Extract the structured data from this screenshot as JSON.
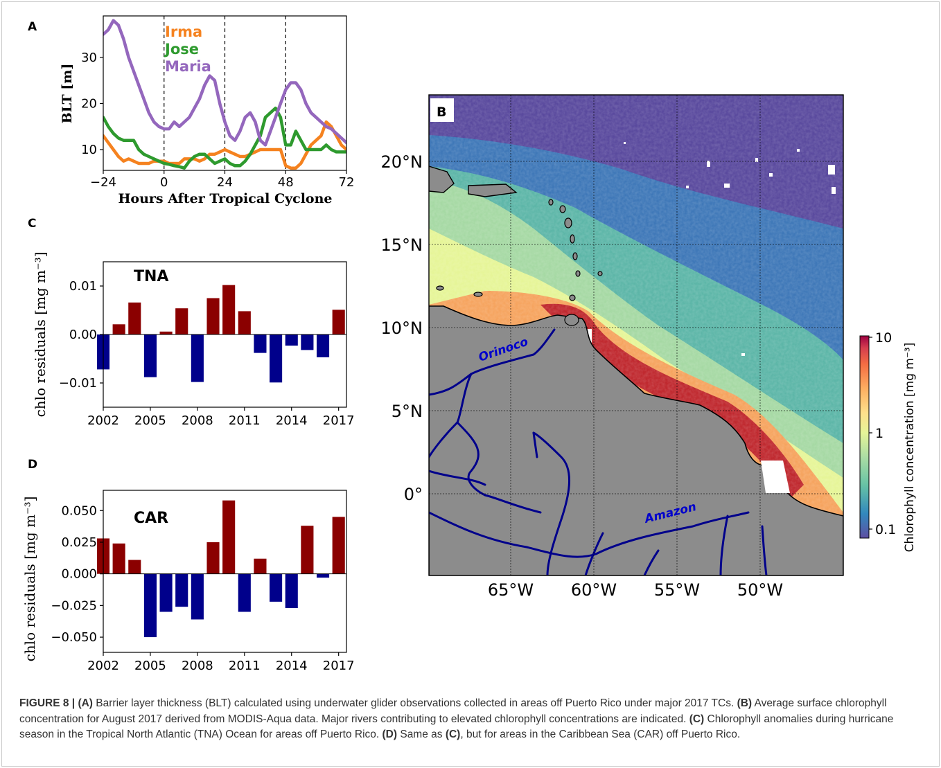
{
  "panel_labels": {
    "a": "A",
    "b": "B",
    "c": "C",
    "d": "D"
  },
  "colors": {
    "irma": "#f5821f",
    "jose": "#2e9a2e",
    "maria": "#9467bd",
    "positive": "#8b0000",
    "negative": "#00008b",
    "land": "#8c8c8c",
    "river": "#00008b"
  },
  "map": {
    "lon_labels": [
      "65°W",
      "60°W",
      "55°W",
      "50°W"
    ],
    "lat_labels": [
      "20°N",
      "15°N",
      "10°N",
      "5°N",
      "0°"
    ],
    "rivers": {
      "orinoco": "Orinoco",
      "amazon": "Amazon"
    },
    "colorbar": {
      "label": "Chlorophyll concentration [mg m⁻³]",
      "ticks": [
        "10",
        "1",
        "0.1"
      ],
      "scale": "log",
      "range": [
        0.05,
        10
      ]
    }
  },
  "caption": {
    "prefix": "FIGURE 8 |",
    "a_tag": "(A)",
    "a_text": " Barrier layer thickness (BLT) calculated using underwater glider observations collected in areas off Puerto Rico under major 2017 TCs. ",
    "b_tag": "(B)",
    "b_text": " Average surface chlorophyll concentration for August 2017 derived from MODIS-Aqua data. Major rivers contributing to elevated chlorophyll concentrations are indicated. ",
    "c_tag": "(C)",
    "c_text": " Chlorophyll anomalies during hurricane season in the Tropical North Atlantic (TNA) Ocean for areas off Puerto Rico. ",
    "d_tag": "(D)",
    "d_text": " Same as ",
    "d_ref": "(C)",
    "d_text2": ", but for areas in the Caribbean Sea (CAR) off Puerto Rico."
  },
  "chart_data": [
    {
      "type": "line",
      "panel": "A",
      "xlabel": "Hours After Tropical Cyclone",
      "ylabel": "BLT [m]",
      "xlim": [
        -24,
        72
      ],
      "ylim": [
        5.5,
        39
      ],
      "xticks": [
        -24,
        0,
        24,
        48,
        72
      ],
      "xtick_labels": [
        "−24",
        "0",
        "24",
        "48",
        "72"
      ],
      "yticks": [
        10,
        20,
        30
      ],
      "vlines": [
        0,
        24,
        48
      ],
      "legend": "top-left",
      "series": [
        {
          "name": "Irma",
          "x": [
            -24,
            -22,
            -20,
            -18,
            -16,
            -14,
            -12,
            -10,
            -8,
            -6,
            -4,
            -2,
            0,
            2,
            4,
            6,
            8,
            10,
            12,
            14,
            16,
            18,
            20,
            22,
            24,
            26,
            28,
            30,
            32,
            34,
            36,
            38,
            40,
            42,
            44,
            46,
            48,
            50,
            52,
            54,
            56,
            58,
            60,
            62,
            64,
            66,
            68,
            70,
            72
          ],
          "y": [
            13,
            11.5,
            10,
            8.5,
            7.5,
            8,
            7.5,
            7,
            7,
            7,
            7.5,
            7.5,
            7.5,
            7,
            7,
            7,
            8,
            8,
            8,
            7.5,
            8,
            9,
            9,
            9.5,
            10,
            9.5,
            9,
            8.5,
            8.5,
            9,
            9.5,
            10,
            10,
            10,
            10,
            10,
            6.5,
            6,
            6,
            7,
            9,
            11,
            12,
            13,
            16,
            15,
            13,
            11,
            10
          ]
        },
        {
          "name": "Jose",
          "x": [
            -24,
            -22,
            -20,
            -18,
            -16,
            -14,
            -12,
            -10,
            -8,
            -6,
            -4,
            -2,
            0,
            2,
            4,
            6,
            8,
            10,
            12,
            14,
            16,
            18,
            20,
            22,
            24,
            26,
            28,
            30,
            32,
            34,
            36,
            38,
            40,
            42,
            44,
            46,
            48,
            50,
            52,
            54,
            56,
            58,
            60,
            62,
            64,
            66,
            68,
            70,
            72
          ],
          "y": [
            17,
            15,
            13.5,
            12.5,
            12,
            12,
            12,
            10,
            9,
            8.5,
            8,
            7.5,
            7,
            6.8,
            6.5,
            6.3,
            6,
            7.5,
            8.5,
            9,
            9,
            8,
            7,
            7.5,
            8,
            7,
            6.5,
            6.5,
            7.5,
            9,
            11,
            13,
            17,
            18,
            19,
            17,
            11,
            11,
            14,
            12,
            10,
            10,
            10,
            10,
            11,
            10,
            9.5,
            9.5,
            9.5
          ]
        },
        {
          "name": "Maria",
          "x": [
            -24,
            -22,
            -20,
            -18,
            -16,
            -14,
            -12,
            -10,
            -8,
            -6,
            -4,
            -2,
            0,
            2,
            4,
            6,
            8,
            10,
            12,
            14,
            16,
            18,
            20,
            22,
            24,
            26,
            28,
            30,
            32,
            34,
            36,
            38,
            40,
            42,
            44,
            46,
            48,
            50,
            52,
            54,
            56,
            58,
            60,
            62,
            64,
            66,
            68,
            70,
            72
          ],
          "y": [
            35,
            36,
            38,
            37,
            34,
            30,
            27,
            24,
            21,
            18,
            16,
            15,
            14.5,
            14.5,
            16,
            15,
            16,
            17,
            19,
            21,
            24,
            26,
            25,
            20,
            16,
            13,
            12,
            14,
            17,
            18,
            16,
            12,
            11,
            14,
            17,
            20,
            23,
            24.5,
            24.5,
            23,
            20,
            18,
            17,
            16,
            15,
            14.5,
            13.5,
            12.5,
            11.5
          ]
        }
      ]
    },
    {
      "type": "bar",
      "panel": "C",
      "title": "TNA",
      "ylabel": "chlo residuals [mg m⁻³]",
      "xlim": [
        2002,
        2017.5
      ],
      "ylim": [
        -0.015,
        0.015
      ],
      "xticks": [
        2002,
        2005,
        2008,
        2011,
        2014,
        2017
      ],
      "yticks": [
        -0.01,
        0.0,
        0.01
      ],
      "ytick_labels": [
        "−0.01",
        "0.00",
        "0.01"
      ],
      "categories": [
        2002,
        2003,
        2004,
        2005,
        2006,
        2007,
        2008,
        2009,
        2010,
        2011,
        2012,
        2013,
        2014,
        2015,
        2016,
        2017
      ],
      "values": [
        -0.0072,
        0.0021,
        0.0066,
        -0.0088,
        0.0006,
        0.0054,
        -0.0098,
        0.0075,
        0.0102,
        0.0048,
        -0.0038,
        -0.0099,
        -0.0023,
        -0.0032,
        -0.0047,
        0.0051
      ]
    },
    {
      "type": "bar",
      "panel": "D",
      "title": "CAR",
      "ylabel": "chlo residuals [mg m⁻³]",
      "xlim": [
        2002,
        2017.5
      ],
      "ylim": [
        -0.062,
        0.066
      ],
      "xticks": [
        2002,
        2005,
        2008,
        2011,
        2014,
        2017
      ],
      "yticks": [
        -0.05,
        -0.025,
        0.0,
        0.025,
        0.05
      ],
      "ytick_labels": [
        "−0.050",
        "−0.025",
        "0.000",
        "0.025",
        "0.050"
      ],
      "categories": [
        2002,
        2003,
        2004,
        2005,
        2006,
        2007,
        2008,
        2009,
        2010,
        2011,
        2012,
        2013,
        2014,
        2015,
        2016,
        2017
      ],
      "values": [
        0.028,
        0.024,
        0.011,
        -0.05,
        -0.03,
        -0.026,
        -0.036,
        0.025,
        0.058,
        -0.03,
        0.012,
        -0.022,
        -0.027,
        0.038,
        -0.003,
        0.045
      ]
    }
  ]
}
